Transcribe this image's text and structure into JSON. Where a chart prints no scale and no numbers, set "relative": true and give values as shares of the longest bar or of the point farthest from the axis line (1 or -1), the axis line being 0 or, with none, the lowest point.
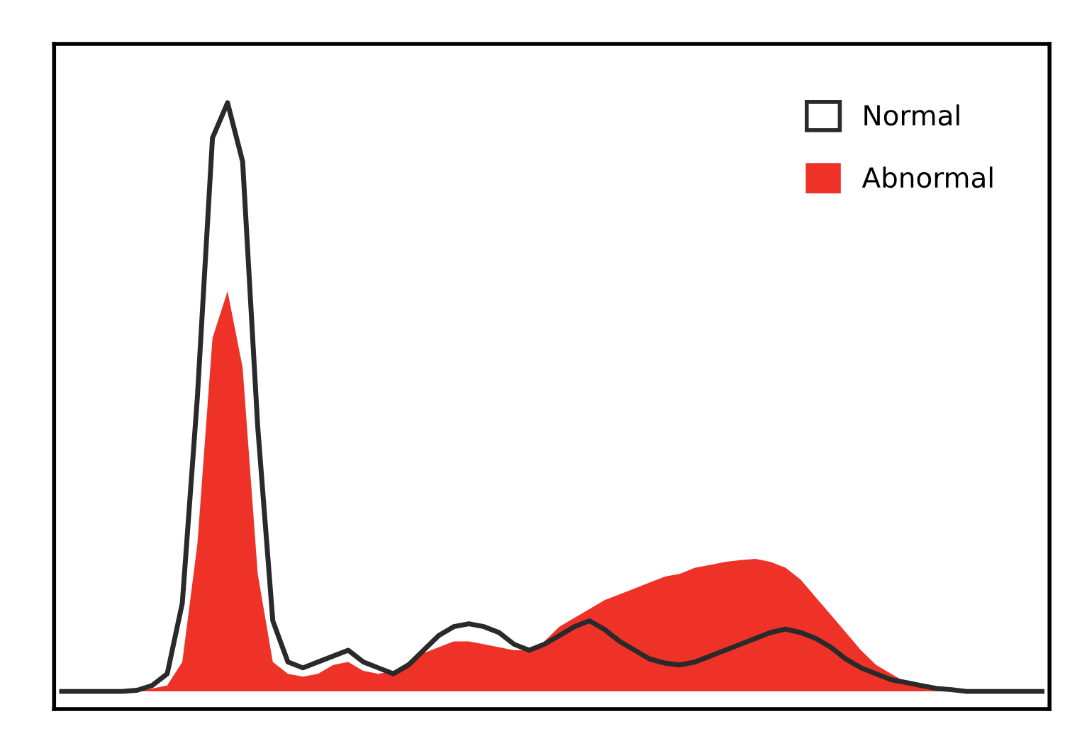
{
  "chart_data": {
    "type": "area",
    "relative": true,
    "legend": "top right",
    "categories": [
      null,
      null,
      null,
      null,
      null,
      null,
      null,
      null,
      null,
      null,
      null,
      null,
      null,
      null,
      null,
      null,
      null,
      null,
      null,
      null,
      null,
      null,
      null,
      null,
      null,
      null,
      null,
      null,
      null,
      null,
      null,
      null,
      null,
      null,
      null,
      null,
      null,
      null,
      null,
      null,
      null,
      null,
      null,
      null,
      null,
      null,
      null,
      null,
      null,
      null,
      null,
      null,
      null,
      null,
      null,
      null,
      null,
      null,
      null,
      null,
      null,
      null,
      null,
      null,
      null,
      null
    ],
    "series": [
      {
        "name": "Abnormal",
        "color": "#ee3228",
        "values": [
          0,
          0,
          0,
          0,
          0,
          0,
          0.005,
          0.01,
          0.05,
          0.25,
          0.6,
          0.68,
          0.55,
          0.2,
          0.05,
          0.03,
          0.025,
          0.03,
          0.045,
          0.05,
          0.035,
          0.03,
          0.035,
          0.05,
          0.065,
          0.075,
          0.085,
          0.085,
          0.08,
          0.075,
          0.07,
          0.07,
          0.085,
          0.11,
          0.125,
          0.14,
          0.155,
          0.165,
          0.175,
          0.185,
          0.195,
          0.2,
          0.21,
          0.215,
          0.22,
          0.223,
          0.225,
          0.22,
          0.21,
          0.19,
          0.16,
          0.13,
          0.1,
          0.07,
          0.045,
          0.03,
          0.015,
          0.008,
          0.003,
          0,
          0,
          0,
          0,
          0,
          0,
          0
        ]
      },
      {
        "name": "Normal",
        "type": "line",
        "color": "#2a2a2a",
        "values": [
          0,
          0,
          0,
          0,
          0,
          0.002,
          0.01,
          0.03,
          0.15,
          0.5,
          0.94,
          1,
          0.9,
          0.45,
          0.12,
          0.05,
          0.04,
          0.05,
          0.06,
          0.07,
          0.05,
          0.04,
          0.03,
          0.045,
          0.07,
          0.095,
          0.11,
          0.115,
          0.11,
          0.1,
          0.08,
          0.07,
          0.08,
          0.095,
          0.11,
          0.12,
          0.105,
          0.085,
          0.07,
          0.055,
          0.048,
          0.045,
          0.05,
          0.06,
          0.07,
          0.08,
          0.09,
          0.1,
          0.106,
          0.1,
          0.09,
          0.075,
          0.055,
          0.04,
          0.03,
          0.02,
          0.015,
          0.01,
          0.005,
          0.003,
          0,
          0,
          0,
          0,
          0,
          0
        ]
      }
    ]
  }
}
